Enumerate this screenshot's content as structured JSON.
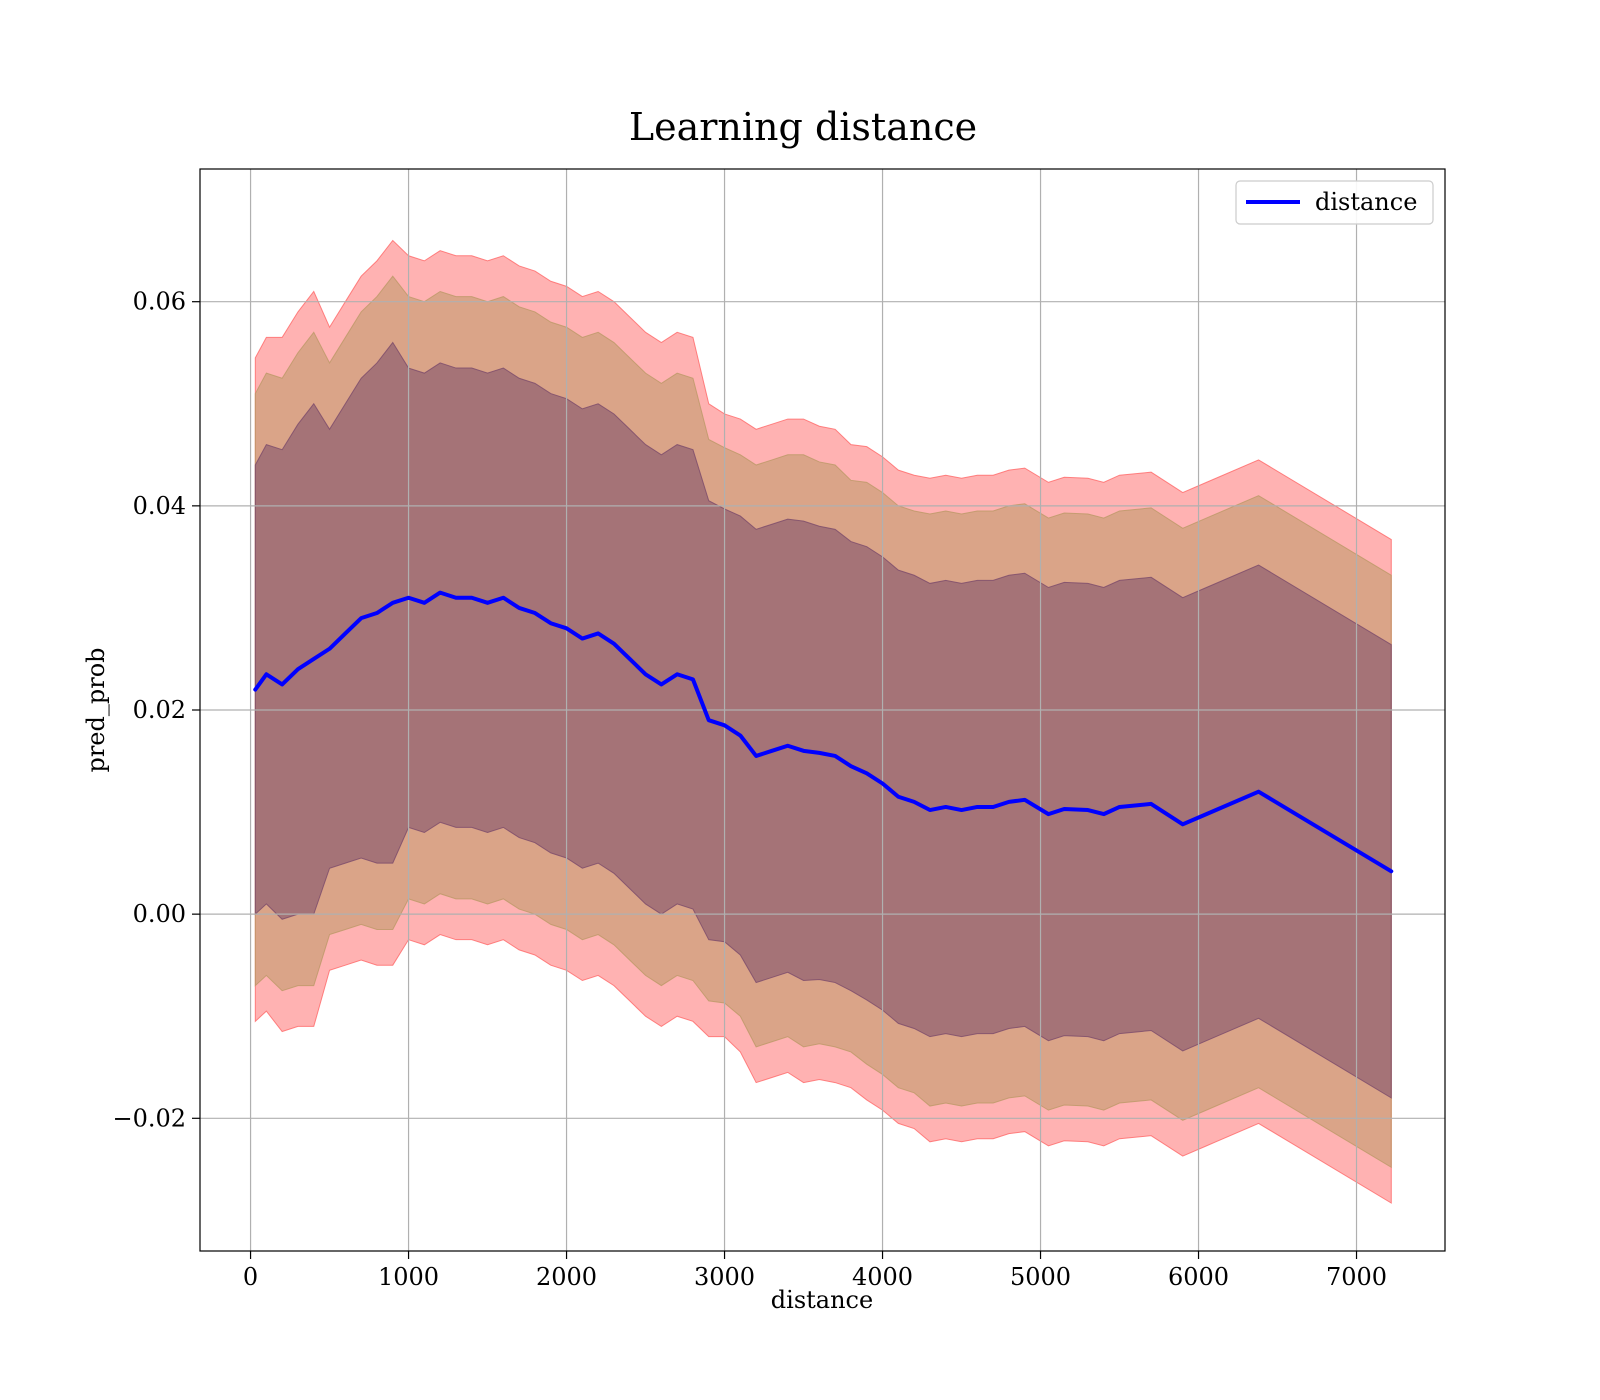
{
  "chart_data": {
    "type": "line",
    "title": "Learning distance",
    "xlabel": "distance",
    "ylabel": "pred_prob",
    "xlim": [
      -320,
      7560
    ],
    "ylim": [
      -0.033,
      0.073
    ],
    "xticks": [
      0,
      1000,
      2000,
      3000,
      4000,
      5000,
      6000,
      7000
    ],
    "yticks": [
      -0.02,
      0.0,
      0.02,
      0.04,
      0.06
    ],
    "xtick_labels": [
      "0",
      "1000",
      "2000",
      "3000",
      "4000",
      "5000",
      "6000",
      "7000"
    ],
    "ytick_labels": [
      "−0.02",
      "0.00",
      "0.02",
      "0.04",
      "0.06"
    ],
    "grid": true,
    "legend": {
      "location": "upper right",
      "entries": [
        "distance"
      ]
    },
    "series": [
      {
        "name": "distance",
        "color": "#0000ff",
        "x": [
          30,
          100,
          200,
          300,
          400,
          500,
          600,
          700,
          800,
          900,
          1000,
          1100,
          1200,
          1300,
          1400,
          1500,
          1600,
          1700,
          1800,
          1900,
          2000,
          2100,
          2200,
          2300,
          2400,
          2500,
          2600,
          2700,
          2800,
          2900,
          3000,
          3100,
          3200,
          3300,
          3400,
          3500,
          3600,
          3700,
          3800,
          3900,
          4000,
          4100,
          4200,
          4300,
          4400,
          4500,
          4600,
          4700,
          4800,
          4900,
          5050,
          5150,
          5300,
          5400,
          5500,
          5700,
          5900,
          6050,
          6380,
          7220
        ],
        "y": [
          0.022,
          0.0235,
          0.0225,
          0.024,
          0.025,
          0.026,
          0.0275,
          0.029,
          0.0295,
          0.0305,
          0.031,
          0.0305,
          0.0315,
          0.031,
          0.031,
          0.0305,
          0.031,
          0.03,
          0.0295,
          0.0285,
          0.028,
          0.027,
          0.0275,
          0.0265,
          0.025,
          0.0235,
          0.0225,
          0.0235,
          0.023,
          0.019,
          0.0185,
          0.0175,
          0.0155,
          0.016,
          0.0165,
          0.016,
          0.0158,
          0.0155,
          0.0145,
          0.0138,
          0.0128,
          0.0115,
          0.011,
          0.0102,
          0.0105,
          0.0102,
          0.0105,
          0.0105,
          0.011,
          0.0112,
          0.0098,
          0.0103,
          0.0102,
          0.0098,
          0.0105,
          0.0108,
          0.0088,
          0.0098,
          0.012,
          0.0042
        ]
      }
    ],
    "bands": [
      {
        "color": "#ff6666",
        "opacity": 0.5,
        "halfwidth": [
          0.0325,
          0.033,
          0.034,
          0.035,
          0.036,
          0.0315,
          0.0325,
          0.0335,
          0.0345,
          0.0355,
          0.0335,
          0.0335,
          0.0335,
          0.0335,
          0.0335,
          0.0335,
          0.0335,
          0.0335,
          0.0335,
          0.0335,
          0.0335,
          0.0335,
          0.0335,
          0.0335,
          0.0335,
          0.0335,
          0.0335,
          0.0335,
          0.0335,
          0.031,
          0.0305,
          0.031,
          0.032,
          0.032,
          0.032,
          0.0325,
          0.032,
          0.032,
          0.0315,
          0.032,
          0.032,
          0.032,
          0.032,
          0.0325,
          0.0325,
          0.0325,
          0.0325,
          0.0325,
          0.0325,
          0.0325,
          0.0325,
          0.0325,
          0.0325,
          0.0325,
          0.0325,
          0.0325,
          0.0325,
          0.0325,
          0.0325,
          0.0325
        ]
      },
      {
        "color": "#bb9966",
        "opacity": 0.55,
        "halfwidth": [
          0.029,
          0.0295,
          0.03,
          0.031,
          0.032,
          0.028,
          0.029,
          0.03,
          0.031,
          0.032,
          0.0295,
          0.0295,
          0.0295,
          0.0295,
          0.0295,
          0.0295,
          0.0295,
          0.0295,
          0.0295,
          0.0295,
          0.0295,
          0.0295,
          0.0295,
          0.0295,
          0.0295,
          0.0295,
          0.0295,
          0.0295,
          0.0295,
          0.0275,
          0.0272,
          0.0275,
          0.0285,
          0.0285,
          0.0285,
          0.029,
          0.0285,
          0.0285,
          0.028,
          0.0285,
          0.0285,
          0.0285,
          0.0285,
          0.029,
          0.029,
          0.029,
          0.029,
          0.029,
          0.029,
          0.029,
          0.029,
          0.029,
          0.029,
          0.029,
          0.029,
          0.029,
          0.029,
          0.029,
          0.029,
          0.029
        ]
      },
      {
        "color": "#7a4a6a",
        "opacity": 0.55,
        "halfwidth": [
          0.022,
          0.0225,
          0.023,
          0.024,
          0.025,
          0.0215,
          0.0225,
          0.0235,
          0.0245,
          0.0255,
          0.0225,
          0.0225,
          0.0225,
          0.0225,
          0.0225,
          0.0225,
          0.0225,
          0.0225,
          0.0225,
          0.0225,
          0.0225,
          0.0225,
          0.0225,
          0.0225,
          0.0225,
          0.0225,
          0.0225,
          0.0225,
          0.0225,
          0.0215,
          0.0212,
          0.0215,
          0.0222,
          0.0222,
          0.0222,
          0.0225,
          0.0222,
          0.0222,
          0.022,
          0.0222,
          0.0222,
          0.0222,
          0.0222,
          0.0222,
          0.0222,
          0.0222,
          0.0222,
          0.0222,
          0.0222,
          0.0222,
          0.0222,
          0.0222,
          0.0222,
          0.0222,
          0.0222,
          0.0222,
          0.0222,
          0.0222,
          0.0222,
          0.0222
        ]
      }
    ]
  }
}
